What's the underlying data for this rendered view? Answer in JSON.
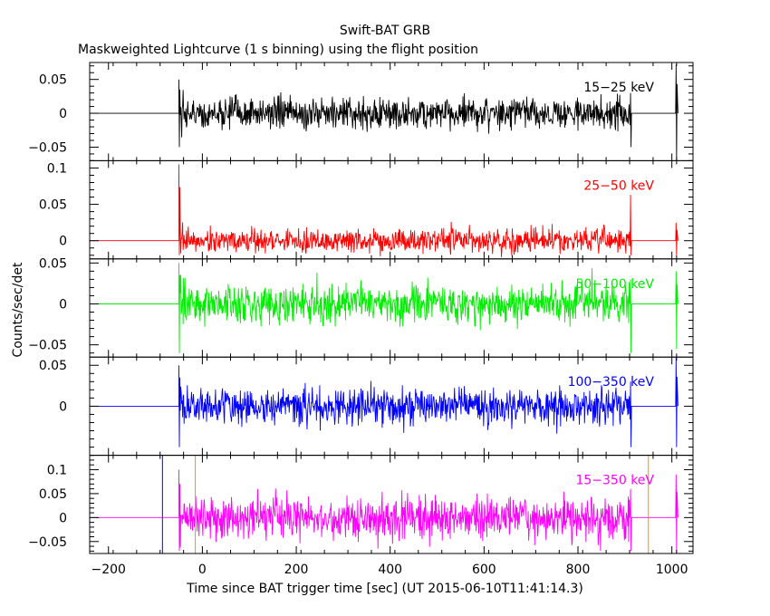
{
  "chart_data": {
    "type": "line",
    "title": "Swift-BAT GRB",
    "subtitle": "Maskweighted Lightcurve (1 s binning) using the flight position",
    "xlabel": "Time since BAT trigger time [sec] (UT 2015-06-10T11:41:14.3)",
    "ylabel": "Counts/sec/det",
    "xlim": [
      -240,
      1045
    ],
    "x_ticks": [
      -200,
      0,
      200,
      400,
      600,
      800,
      1000
    ],
    "x_tick_labels": [
      "−200",
      "0",
      "200",
      "400",
      "600",
      "800",
      "1000"
    ],
    "data_start": -50,
    "data_end": 913,
    "tail_start": 1008,
    "tail_end": 1013,
    "panels": [
      {
        "name": "15−25 keV",
        "color": "#000000",
        "ylim": [
          -0.07,
          0.075
        ],
        "yticks": [
          -0.05,
          0,
          0.05
        ],
        "ytick_labels": [
          "−0.05",
          "0",
          "0.05"
        ],
        "noise_amp": 0.016,
        "spike_max": 0.05,
        "spike_min": -0.05,
        "tail_max": 0.072,
        "tail_min": -0.07
      },
      {
        "name": "25−50 keV",
        "color": "#ff0000",
        "ylim": [
          -0.025,
          0.11
        ],
        "yticks": [
          0,
          0.05,
          0.1
        ],
        "ytick_labels": [
          "0",
          "0.05",
          "0.1"
        ],
        "noise_amp": 0.011,
        "spike_max": 0.105,
        "spike_min": -0.02,
        "tail_max": 0.025,
        "tail_min": -0.02
      },
      {
        "name": "50−100 keV",
        "color": "#00ee00",
        "ylim": [
          -0.065,
          0.055
        ],
        "yticks": [
          -0.05,
          0,
          0.05
        ],
        "ytick_labels": [
          "−0.05",
          "0",
          "0.05"
        ],
        "noise_amp": 0.016,
        "spike_max": 0.05,
        "spike_min": -0.06,
        "tail_max": 0.04,
        "tail_min": -0.055
      },
      {
        "name": "100−350 keV",
        "color": "#0000ff",
        "ylim": [
          -0.06,
          0.06
        ],
        "yticks": [
          0,
          0.05
        ],
        "ytick_labels": [
          "0",
          "0.05"
        ],
        "noise_amp": 0.015,
        "spike_max": 0.05,
        "spike_min": -0.05,
        "tail_max": 0.06,
        "tail_min": -0.05
      },
      {
        "name": "15−350 keV",
        "color": "#ff00ff",
        "ylim": [
          -0.075,
          0.13
        ],
        "yticks": [
          -0.05,
          0,
          0.05,
          0.1
        ],
        "ytick_labels": [
          "−0.05",
          "0",
          "0.05",
          "0.1"
        ],
        "noise_amp": 0.03,
        "spike_max": 0.1,
        "spike_min": -0.07,
        "tail_max": 0.09,
        "tail_min": -0.075
      }
    ],
    "markers": [
      {
        "x": -85,
        "color": "#0000ff"
      },
      {
        "x": -15,
        "color": "#ff8800"
      },
      {
        "x": 950,
        "color": "#ff8800"
      }
    ]
  }
}
